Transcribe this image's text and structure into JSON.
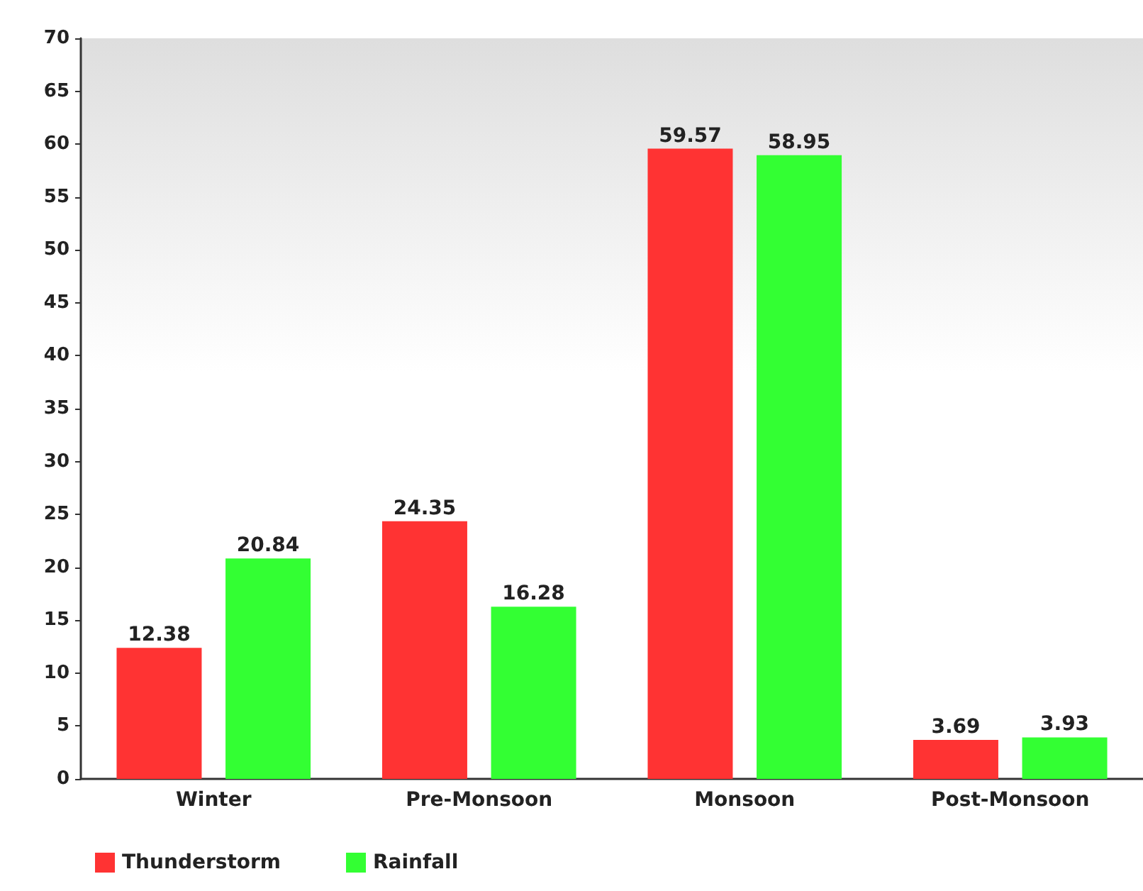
{
  "chart_data": {
    "type": "bar",
    "categories": [
      "Winter",
      "Pre-Monsoon",
      "Monsoon",
      "Post-Monsoon"
    ],
    "series": [
      {
        "name": "Thunderstorm",
        "color": "#ff3333",
        "values": [
          12.38,
          24.35,
          59.57,
          3.69
        ]
      },
      {
        "name": "Rainfall",
        "color": "#33ff33",
        "values": [
          20.84,
          16.28,
          58.95,
          3.93
        ]
      }
    ],
    "ylim": [
      0,
      70
    ],
    "yticks": [
      0,
      5,
      10,
      15,
      20,
      25,
      30,
      35,
      40,
      45,
      50,
      55,
      60,
      65,
      70
    ],
    "data_labels": true,
    "grid": false,
    "legend": "bottom left"
  }
}
